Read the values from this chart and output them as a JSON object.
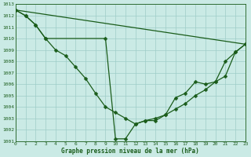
{
  "line1_x": [
    0,
    1,
    2,
    3,
    4,
    5,
    6,
    7,
    8,
    9,
    10,
    11,
    12,
    13,
    14,
    15,
    16,
    17,
    18,
    19,
    20,
    21,
    22,
    23
  ],
  "line1_y": [
    1012.5,
    1012.0,
    1011.2,
    1010.0,
    1009.0,
    1008.5,
    1007.5,
    1006.5,
    1005.2,
    1004.0,
    1003.5,
    1003.0,
    1002.5,
    1002.8,
    1003.0,
    1003.3,
    1003.8,
    1004.3,
    1005.0,
    1005.5,
    1006.2,
    1008.0,
    1008.8,
    1009.5
  ],
  "line2_x": [
    0,
    23
  ],
  "line2_y": [
    1012.5,
    1009.5
  ],
  "line3_x": [
    0,
    1,
    2,
    3,
    9,
    10,
    11,
    12,
    13,
    14,
    15,
    16,
    17,
    18,
    19,
    20,
    21,
    22,
    23
  ],
  "line3_y": [
    1012.5,
    1012.0,
    1011.2,
    1010.0,
    1010.0,
    1001.2,
    1001.2,
    1002.5,
    1002.8,
    1002.8,
    1003.3,
    1004.8,
    1005.2,
    1006.2,
    1006.0,
    1006.2,
    1006.7,
    1008.8,
    1009.5
  ],
  "bg_color": "#caeae5",
  "grid_color": "#9ecdc8",
  "line_color": "#1a5c1a",
  "xlabel": "Graphe pression niveau de la mer (hPa)",
  "ylim": [
    1001,
    1013
  ],
  "xlim": [
    0,
    23
  ],
  "yticks": [
    1001,
    1002,
    1003,
    1004,
    1005,
    1006,
    1007,
    1008,
    1009,
    1010,
    1011,
    1012,
    1013
  ],
  "xticks": [
    0,
    1,
    2,
    3,
    4,
    5,
    6,
    7,
    8,
    9,
    10,
    11,
    12,
    13,
    14,
    15,
    16,
    17,
    18,
    19,
    20,
    21,
    22,
    23
  ],
  "marker": "D",
  "markersize": 2.5,
  "linewidth": 0.9,
  "tick_fontsize": 4.5,
  "xlabel_fontsize": 5.5
}
